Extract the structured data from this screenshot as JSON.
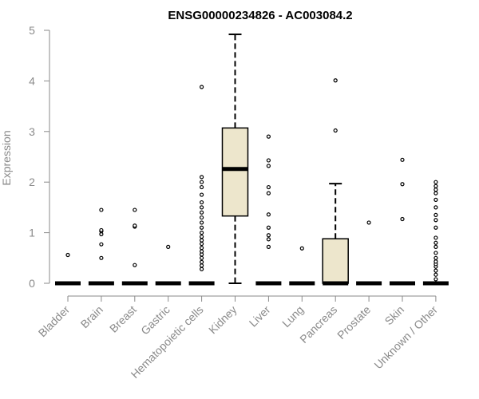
{
  "chart_data": {
    "type": "box",
    "title": "ENSG00000234826 - AC003084.2",
    "xlabel": "",
    "ylabel": "Expression",
    "ylim": [
      0,
      5
    ],
    "yticks": [
      "0",
      "1",
      "2",
      "3",
      "4",
      "5"
    ],
    "grid": false,
    "colors": {
      "box_fill": "#ede6cc",
      "box_stroke": "#000000",
      "axis": "#8a8a8a"
    },
    "categories": [
      "Bladder",
      "Brain",
      "Breast",
      "Gastric",
      "Hematopoietic cells",
      "Kidney",
      "Liver",
      "Lung",
      "Pancreas",
      "Prostate",
      "Skin",
      "Unknown / Other"
    ],
    "boxes": [
      {
        "q1": 0,
        "median": 0,
        "q3": 0,
        "whisker_low": 0,
        "whisker_high": 0,
        "outliers": [
          0.56
        ]
      },
      {
        "q1": 0,
        "median": 0,
        "q3": 0,
        "whisker_low": 0,
        "whisker_high": 0,
        "outliers": [
          0.5,
          0.77,
          0.97,
          1.03,
          1.05,
          1.45
        ]
      },
      {
        "q1": 0,
        "median": 0,
        "q3": 0,
        "whisker_low": 0,
        "whisker_high": 0,
        "outliers": [
          0.36,
          1.12,
          1.14,
          1.45
        ]
      },
      {
        "q1": 0,
        "median": 0,
        "q3": 0,
        "whisker_low": 0,
        "whisker_high": 0,
        "outliers": [
          0.72
        ]
      },
      {
        "q1": 0,
        "median": 0,
        "q3": 0,
        "whisker_low": 0,
        "whisker_high": 0,
        "outliers": [
          0.28,
          0.35,
          0.42,
          0.5,
          0.57,
          0.63,
          0.7,
          0.78,
          0.85,
          0.92,
          1.0,
          1.1,
          1.2,
          1.3,
          1.4,
          1.5,
          1.6,
          1.75,
          1.9,
          2.0,
          2.1,
          3.88
        ]
      },
      {
        "q1": 1.33,
        "median": 2.26,
        "q3": 3.07,
        "whisker_low": 0,
        "whisker_high": 4.92,
        "outliers": []
      },
      {
        "q1": 0,
        "median": 0,
        "q3": 0,
        "whisker_low": 0,
        "whisker_high": 0,
        "outliers": [
          0.72,
          0.87,
          0.95,
          1.1,
          1.36,
          1.78,
          1.9,
          2.32,
          2.43,
          2.9
        ]
      },
      {
        "q1": 0,
        "median": 0,
        "q3": 0,
        "whisker_low": 0,
        "whisker_high": 0,
        "outliers": [
          0.69
        ]
      },
      {
        "q1": 0,
        "median": 0,
        "q3": 0.88,
        "whisker_low": 0,
        "whisker_high": 1.97,
        "outliers": [
          3.02,
          4.01
        ]
      },
      {
        "q1": 0,
        "median": 0,
        "q3": 0,
        "whisker_low": 0,
        "whisker_high": 0,
        "outliers": [
          1.2
        ]
      },
      {
        "q1": 0,
        "median": 0,
        "q3": 0,
        "whisker_low": 0,
        "whisker_high": 0,
        "outliers": [
          1.27,
          1.96,
          2.44
        ]
      },
      {
        "q1": 0,
        "median": 0,
        "q3": 0,
        "whisker_low": 0,
        "whisker_high": 0,
        "outliers": [
          0.08,
          0.17,
          0.25,
          0.33,
          0.38,
          0.43,
          0.5,
          0.6,
          0.72,
          0.8,
          0.9,
          1.1,
          1.25,
          1.35,
          1.5,
          1.65,
          1.78,
          1.85,
          1.92,
          2.0
        ]
      }
    ]
  }
}
